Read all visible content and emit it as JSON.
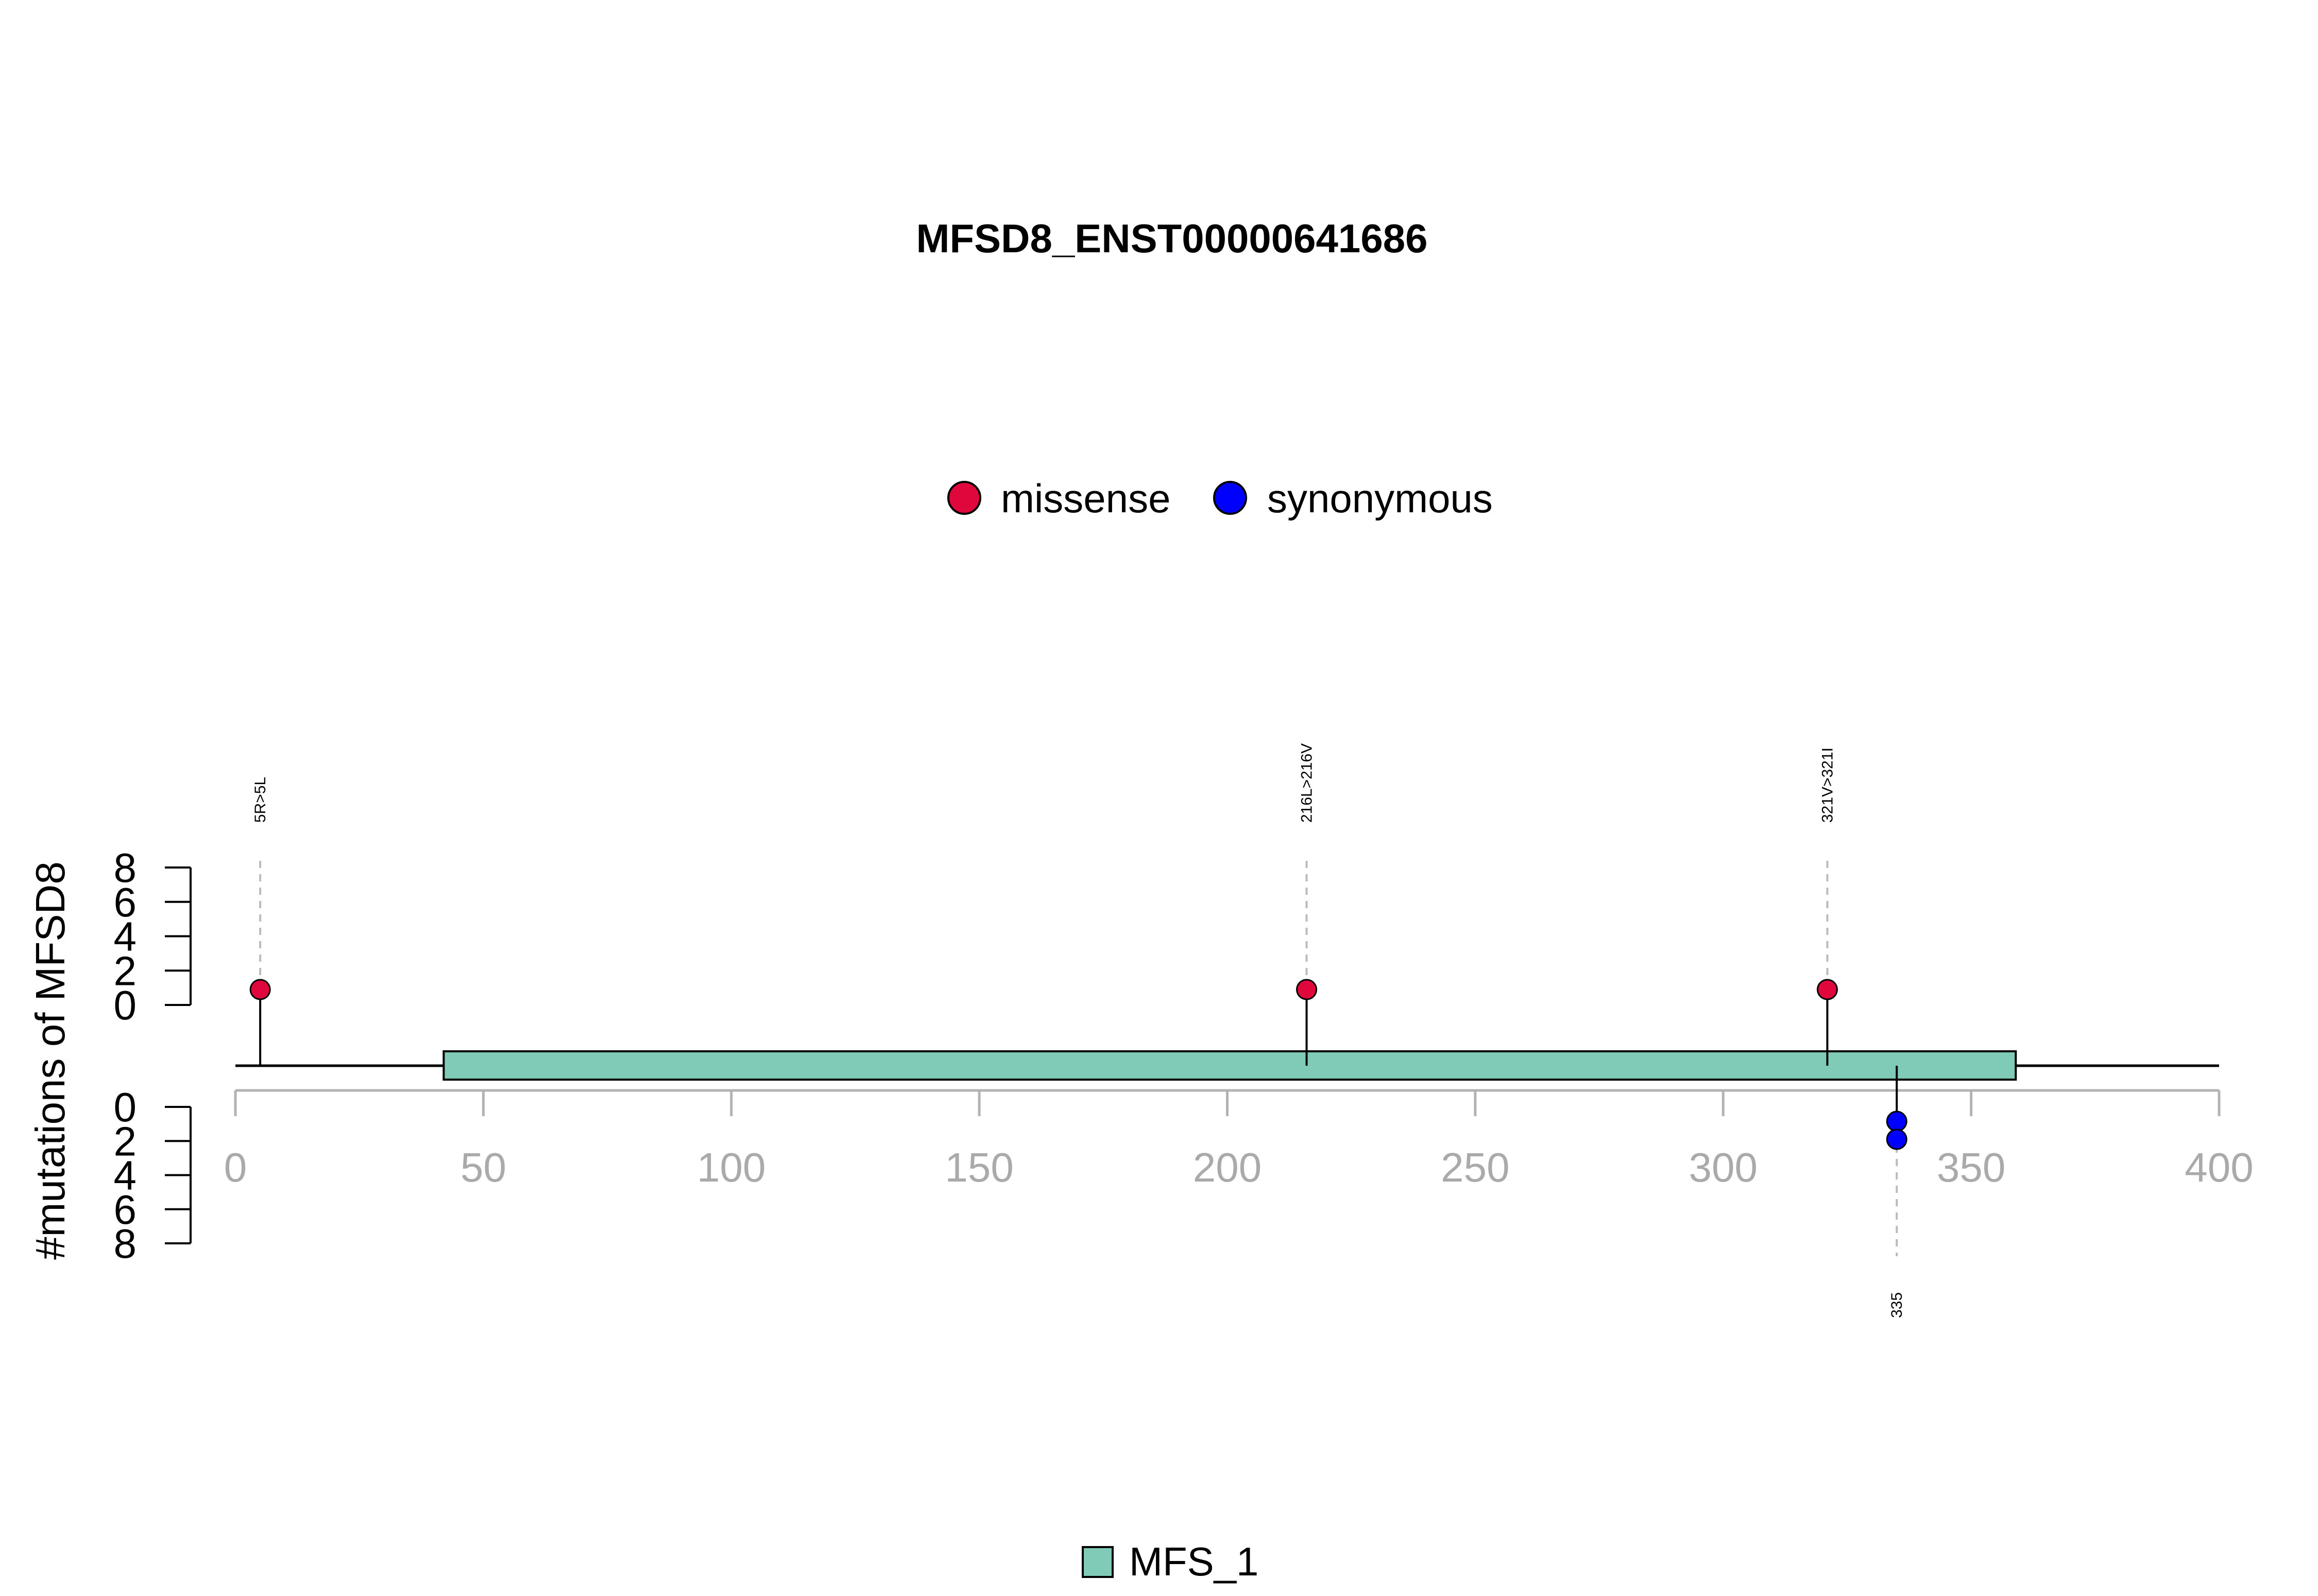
{
  "chart_data": {
    "type": "lollipop",
    "title": "MFSD8_ENST00000641686",
    "ylabel": "#mutations of MFSD8",
    "xlim": [
      0,
      400
    ],
    "x_ticks": [
      0,
      50,
      100,
      150,
      200,
      250,
      300,
      350,
      400
    ],
    "y_ticks_top": [
      0,
      2,
      4,
      6,
      8
    ],
    "y_ticks_bottom": [
      0,
      2,
      4,
      6,
      8
    ],
    "protein_length": 400,
    "legend_mutations": [
      {
        "name": "missense",
        "color": "#e0073d"
      },
      {
        "name": "synonymous",
        "color": "#0000ff"
      }
    ],
    "domains": [
      {
        "name": "MFS_1",
        "start": 42,
        "end": 359,
        "color": "#80cbb8"
      }
    ],
    "mutations_top": [
      {
        "position": 5,
        "label": "5R>5L",
        "type": "missense",
        "count": 1
      },
      {
        "position": 216,
        "label": "216L>216V",
        "type": "missense",
        "count": 1
      },
      {
        "position": 321,
        "label": "321V>321I",
        "type": "missense",
        "count": 1
      }
    ],
    "mutations_bottom": [
      {
        "position": 335,
        "label": "335",
        "type": "synonymous",
        "count": 2
      }
    ]
  }
}
